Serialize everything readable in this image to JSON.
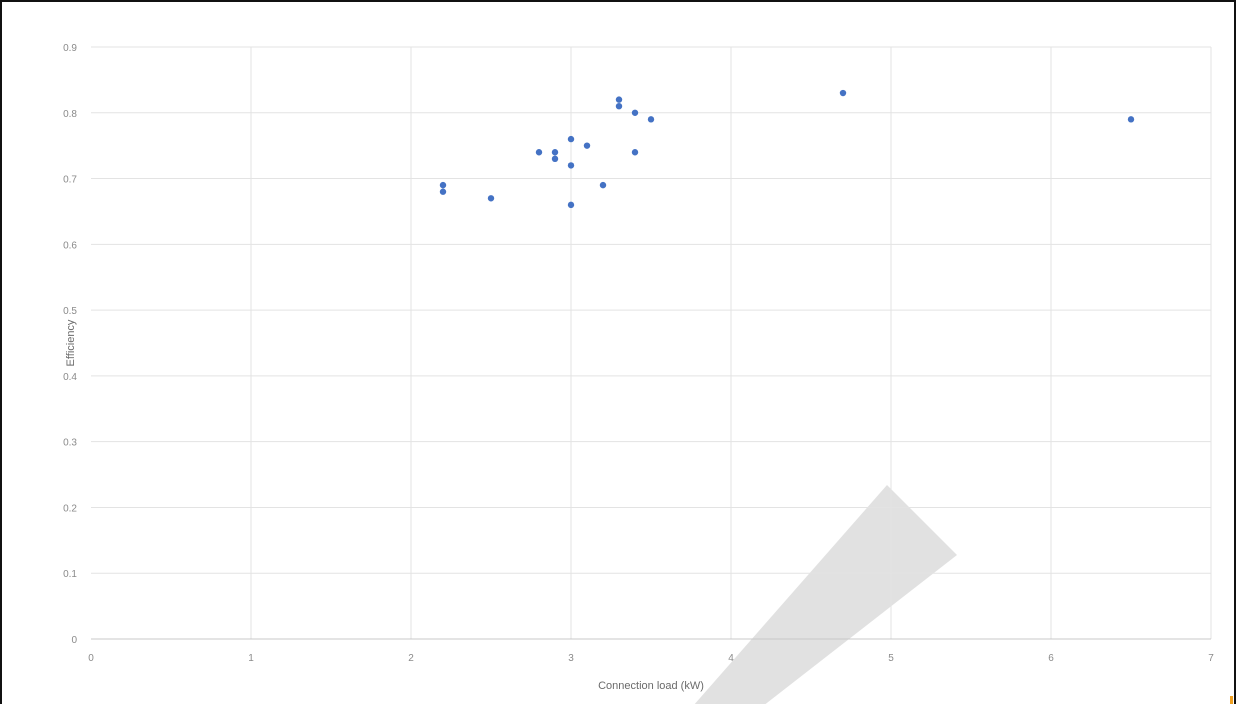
{
  "chart_data": {
    "type": "scatter",
    "title": "",
    "xlabel": "Connection load (kW)",
    "ylabel": "Efficiency",
    "xlim": [
      0,
      7
    ],
    "ylim": [
      0,
      0.9
    ],
    "x_ticks": [
      "0",
      "1",
      "2",
      "3",
      "4",
      "5",
      "6",
      "7"
    ],
    "y_ticks": [
      "0",
      "0.1",
      "0.2",
      "0.3",
      "0.4",
      "0.5",
      "0.6",
      "0.7",
      "0.8",
      "0.9"
    ],
    "grid": true,
    "legend": "none",
    "marker_color": "#4472c4",
    "series": [
      {
        "x": [
          2.2,
          2.2,
          2.5,
          2.8,
          2.9,
          2.9,
          3.0,
          3.0,
          3.0,
          3.1,
          3.2,
          3.3,
          3.3,
          3.4,
          3.4,
          3.5,
          4.7,
          6.5
        ],
        "y": [
          0.69,
          0.68,
          0.67,
          0.74,
          0.74,
          0.73,
          0.76,
          0.72,
          0.66,
          0.75,
          0.69,
          0.82,
          0.81,
          0.8,
          0.74,
          0.79,
          0.83,
          0.79
        ]
      }
    ]
  },
  "colors": {
    "grid": "#e3e3e3",
    "axis_line": "#c8c8c8",
    "watermark": "#dcdcdc",
    "corner_mark": "#f0a020"
  }
}
